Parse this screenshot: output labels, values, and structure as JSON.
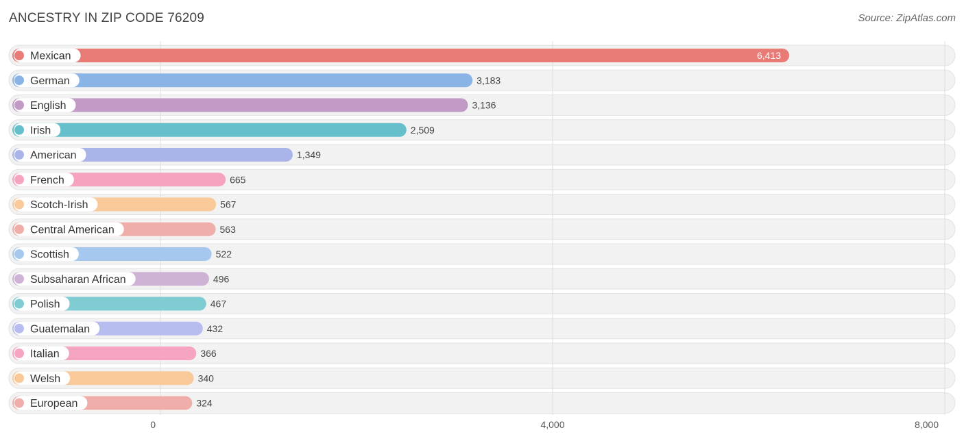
{
  "header": {
    "title": "ANCESTRY IN ZIP CODE 76209",
    "source": "Source: ZipAtlas.com"
  },
  "chart_data": {
    "type": "bar",
    "orientation": "horizontal",
    "title": "ANCESTRY IN ZIP CODE 76209",
    "xlabel": "",
    "ylabel": "",
    "xlim": [
      0,
      8000
    ],
    "ticks": [
      0,
      4000,
      8000
    ],
    "tick_labels": [
      "0",
      "4,000",
      "8,000"
    ],
    "grid": true,
    "categories": [
      "Mexican",
      "German",
      "English",
      "Irish",
      "American",
      "French",
      "Scotch-Irish",
      "Central American",
      "Scottish",
      "Subsaharan African",
      "Polish",
      "Guatemalan",
      "Italian",
      "Welsh",
      "European"
    ],
    "values": [
      6413,
      3183,
      3136,
      2509,
      1349,
      665,
      567,
      563,
      522,
      496,
      467,
      432,
      366,
      340,
      324
    ],
    "value_labels": [
      "6,413",
      "3,183",
      "3,136",
      "2,509",
      "1,349",
      "665",
      "567",
      "563",
      "522",
      "496",
      "467",
      "432",
      "366",
      "340",
      "324"
    ],
    "colors": [
      "#e87b76",
      "#8ab4e6",
      "#c19ac6",
      "#66c0cb",
      "#aab4e8",
      "#f6a3bf",
      "#f9c999",
      "#f0aeaa",
      "#a7c8ee",
      "#cfb3d6",
      "#7fcdd2",
      "#b8bdf0",
      "#f5a5c2",
      "#f9c999",
      "#f0aeaa"
    ]
  }
}
